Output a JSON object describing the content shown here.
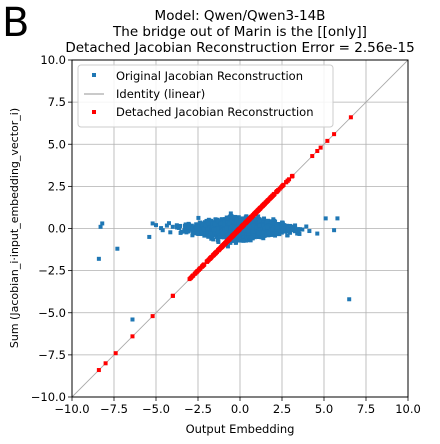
{
  "panel_label": "B",
  "chart_data": {
    "type": "scatter",
    "title_lines": [
      "Model: Qwen/Qwen3-14B",
      "The bridge out of Marin is the [[only]]",
      "Detached Jacobian Reconstruction Error = 2.56e-15"
    ],
    "xlabel": "Output Embedding",
    "ylabel": "Sum (Jacobian_i·input_embedding_vector_i)",
    "xlim": [
      -10,
      10
    ],
    "ylim": [
      -10,
      10
    ],
    "xticks": [
      -10,
      -7.5,
      -5,
      -2.5,
      0,
      2.5,
      5,
      7.5,
      10
    ],
    "yticks": [
      -10,
      -7.5,
      -5,
      -2.5,
      0,
      2.5,
      5,
      7.5,
      10
    ],
    "xtick_labels": [
      "−10.0",
      "−7.5",
      "−5.0",
      "−2.5",
      "0.0",
      "2.5",
      "5.0",
      "7.5",
      "10.0"
    ],
    "ytick_labels": [
      "−10.0",
      "−7.5",
      "−5.0",
      "−2.5",
      "0.0",
      "2.5",
      "5.0",
      "7.5",
      "10.0"
    ],
    "grid": true,
    "legend_position": "top-left",
    "series": [
      {
        "name": "Original Jacobian Reconstruction",
        "kind": "scatter",
        "color": "#1f77b4",
        "points": [
          [
            -8.2,
            0.3
          ],
          [
            -8.3,
            0.1
          ],
          [
            -8.4,
            -1.8
          ],
          [
            -7.3,
            -1.2
          ],
          [
            -6.4,
            -5.4
          ],
          [
            -5.4,
            -0.5
          ],
          [
            -5.2,
            0.3
          ],
          [
            -5.0,
            0.2
          ],
          [
            -4.6,
            -0.1
          ],
          [
            -4.0,
            0.1
          ],
          [
            4.6,
            -0.3
          ],
          [
            5.1,
            0.6
          ],
          [
            5.6,
            -0.1
          ],
          [
            5.8,
            0.6
          ],
          [
            6.5,
            -4.2
          ]
        ],
        "cloud": {
          "count": 2200,
          "x_std": 1.25,
          "x_range": [
            -4.8,
            4.6
          ],
          "y_mean": 0.0,
          "y_std": 0.3
        }
      },
      {
        "name": "Identity (linear)",
        "kind": "line",
        "color": "#aaaaaa",
        "x": [
          -10,
          10
        ],
        "y": [
          -10,
          10
        ]
      },
      {
        "name": "Detached Jacobian Reconstruction",
        "kind": "scatter",
        "color": "#ff0000",
        "points": [
          [
            -8.4,
            -8.4
          ],
          [
            -8.0,
            -8.0
          ],
          [
            -7.4,
            -7.4
          ],
          [
            -6.4,
            -6.4
          ],
          [
            -5.2,
            -5.2
          ],
          [
            -4.0,
            -4.0
          ],
          [
            4.6,
            4.6
          ],
          [
            4.8,
            4.8
          ],
          [
            5.2,
            5.2
          ],
          [
            5.6,
            5.6
          ],
          [
            6.6,
            6.6
          ]
        ],
        "cloud": {
          "count": 500,
          "x_std": 1.3,
          "x_range": [
            -4.2,
            4.3
          ],
          "on_identity": true
        }
      }
    ]
  }
}
